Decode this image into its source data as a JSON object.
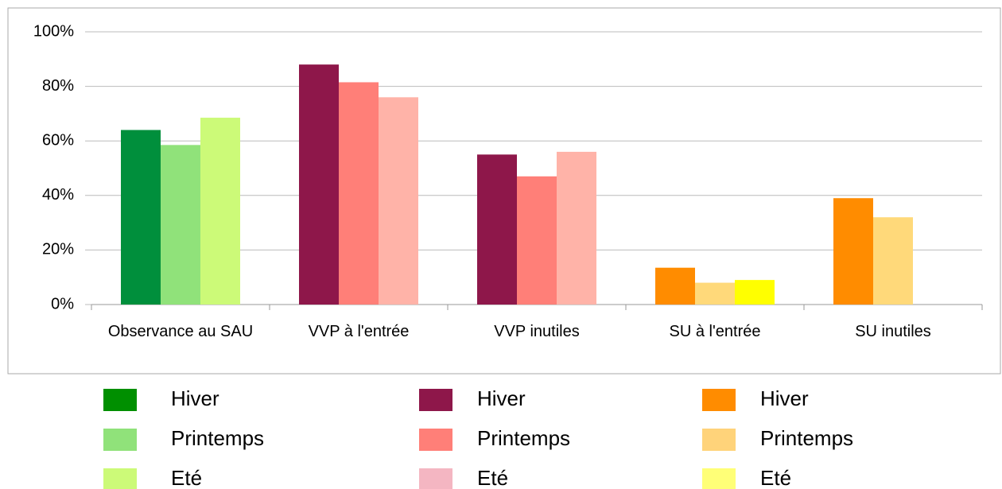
{
  "chart_data": {
    "type": "bar",
    "categories": [
      "Observance au SAU",
      "VVP à l'entrée",
      "VVP inutiles",
      "SU à l'entrée",
      "SU inutiles"
    ],
    "series": [
      {
        "name": "Hiver",
        "colors": [
          "#008f3c",
          "#8e174a",
          "#8e174a",
          "#ff8c00",
          "#ff8c00"
        ],
        "values": [
          64,
          88,
          55,
          13.5,
          39
        ]
      },
      {
        "name": "Printemps",
        "colors": [
          "#90e27a",
          "#ff7f78",
          "#ff7f78",
          "#ffd97a",
          "#ffd97a"
        ],
        "values": [
          58.5,
          81.5,
          47,
          8,
          32
        ]
      },
      {
        "name": "Eté",
        "colors": [
          "#ccfa78",
          "#ffb3a8",
          "#ffb3a8",
          "#ffff00",
          "#ffd97a"
        ],
        "values": [
          68.5,
          76,
          56,
          9,
          null
        ]
      }
    ],
    "legend_groups": [
      [
        "#008f00",
        "#90e27a",
        "#ccfa78"
      ],
      [
        "#8e174a",
        "#ff7f78",
        "#f4b6c2"
      ],
      [
        "#ff8c00",
        "#ffd37a",
        "#ffff77"
      ]
    ],
    "ylim": [
      0,
      100
    ],
    "yticks": [
      {
        "value": 0,
        "label": "0%"
      },
      {
        "value": 20,
        "label": "20%"
      },
      {
        "value": 40,
        "label": "40%"
      },
      {
        "value": 60,
        "label": "60%"
      },
      {
        "value": 80,
        "label": "80%"
      },
      {
        "value": 100,
        "label": "100%"
      }
    ],
    "grid": true
  }
}
